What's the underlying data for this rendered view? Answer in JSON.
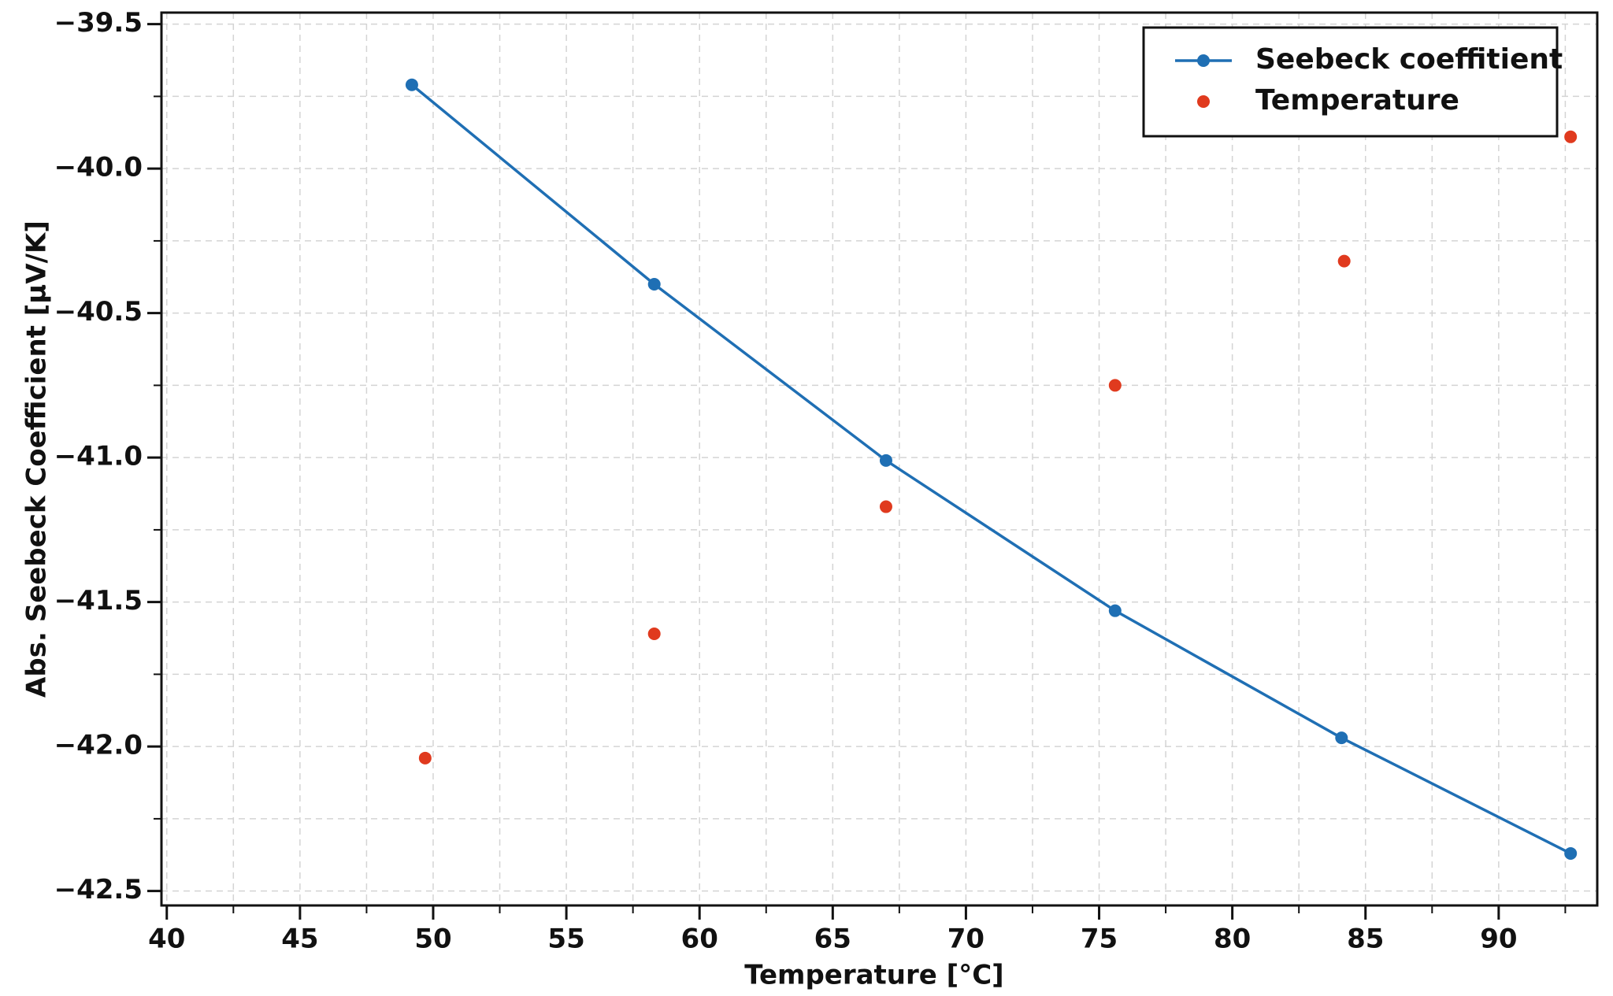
{
  "chart_data": {
    "type": "scatter",
    "xlabel": "Temperature [°C]",
    "ylabel": "Abs. Seebeck Coefficient [µV/K]",
    "xlim": [
      39.8,
      93.7
    ],
    "ylim": [
      -42.55,
      -39.46
    ],
    "xticks": [
      40,
      45,
      50,
      55,
      60,
      65,
      70,
      75,
      80,
      85,
      90
    ],
    "yticks": [
      {
        "value": -42.5,
        "label": "−42.5"
      },
      {
        "value": -42.0,
        "label": "−42.0"
      },
      {
        "value": -41.5,
        "label": "−41.5"
      },
      {
        "value": -41.0,
        "label": "−41.0"
      },
      {
        "value": -40.5,
        "label": "−40.5"
      },
      {
        "value": -40.0,
        "label": "−40.0"
      },
      {
        "value": -39.5,
        "label": "−39.5"
      }
    ],
    "xminorticks": [
      42.5,
      47.5,
      52.5,
      57.5,
      62.5,
      67.5,
      72.5,
      77.5,
      82.5,
      87.5,
      92.5
    ],
    "yminorticks": [
      -42.25,
      -41.75,
      -41.25,
      -40.75,
      -40.25,
      -39.75
    ],
    "grid": true,
    "legend": "upper right",
    "series": [
      {
        "name": "Seebeck coeffitient",
        "color": "#1f6fb4",
        "line": true,
        "x": [
          49.2,
          58.3,
          67.0,
          75.6,
          84.1,
          92.7
        ],
        "values": [
          -39.71,
          -40.4,
          -41.01,
          -41.53,
          -41.97,
          -42.37
        ]
      },
      {
        "name": "Temperature",
        "color": "#e03a1e",
        "line": false,
        "x": [
          49.7,
          58.3,
          67.0,
          75.6,
          84.2,
          92.7
        ],
        "values": [
          -42.04,
          -41.61,
          -41.17,
          -40.75,
          -40.32,
          -39.89
        ]
      }
    ]
  }
}
